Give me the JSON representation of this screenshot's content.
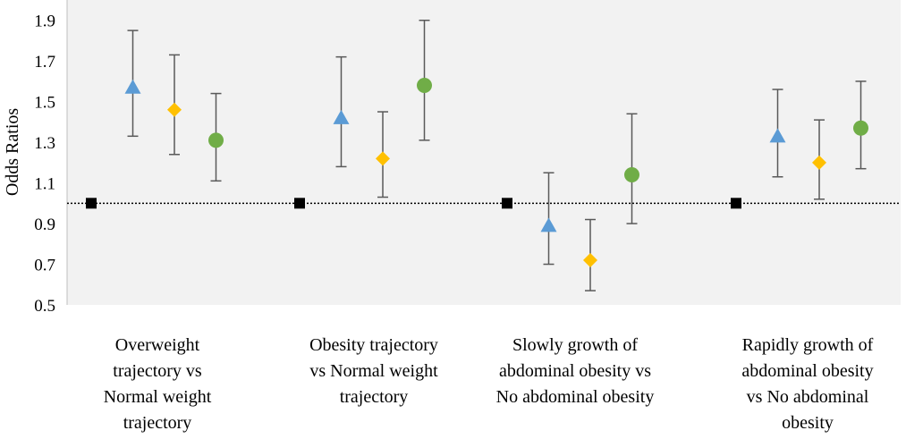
{
  "chart_data": {
    "type": "scatter",
    "title": "",
    "xlabel": "",
    "ylabel": "Odds Ratios",
    "ylim": [
      0.5,
      2.0
    ],
    "yticks": [
      "0.5",
      "0.7",
      "0.9",
      "1.1",
      "1.3",
      "1.5",
      "1.7",
      "1.9"
    ],
    "reference_line": 1.0,
    "grid": false,
    "colors": {
      "plot_background": "#f2f2f2",
      "reference": "#000000",
      "triangle": "#5b9bd5",
      "diamond": "#ffc000",
      "circle": "#70ad47",
      "square": "#000000",
      "error_bar": "#595959"
    },
    "categories": [
      {
        "lines": [
          "Overweight",
          "trajectory vs",
          "Normal weight",
          "trajectory"
        ]
      },
      {
        "lines": [
          "Obesity trajectory",
          "vs Normal weight",
          "trajectory"
        ]
      },
      {
        "lines": [
          "Slowly growth of",
          "abdominal obesity vs",
          "No abdominal obesity"
        ]
      },
      {
        "lines": [
          "Rapidly growth of",
          "abdominal obesity",
          "vs No abdominal",
          "obesity"
        ]
      }
    ],
    "series": [
      {
        "name": "reference",
        "marker": "square",
        "values": [
          1.0,
          1.0,
          1.0,
          1.0
        ],
        "lower": [
          null,
          null,
          null,
          null
        ],
        "upper": [
          null,
          null,
          null,
          null
        ]
      },
      {
        "name": "series-triangle",
        "marker": "triangle",
        "values": [
          1.57,
          1.42,
          0.89,
          1.33
        ],
        "lower": [
          1.33,
          1.18,
          0.7,
          1.13
        ],
        "upper": [
          1.85,
          1.72,
          1.15,
          1.56
        ]
      },
      {
        "name": "series-diamond",
        "marker": "diamond",
        "values": [
          1.46,
          1.22,
          0.72,
          1.2
        ],
        "lower": [
          1.24,
          1.03,
          0.57,
          1.02
        ],
        "upper": [
          1.73,
          1.45,
          0.92,
          1.41
        ]
      },
      {
        "name": "series-circle",
        "marker": "circle",
        "values": [
          1.31,
          1.58,
          1.14,
          1.37
        ],
        "lower": [
          1.11,
          1.31,
          0.9,
          1.17
        ],
        "upper": [
          1.54,
          1.9,
          1.44,
          1.6
        ]
      }
    ]
  }
}
